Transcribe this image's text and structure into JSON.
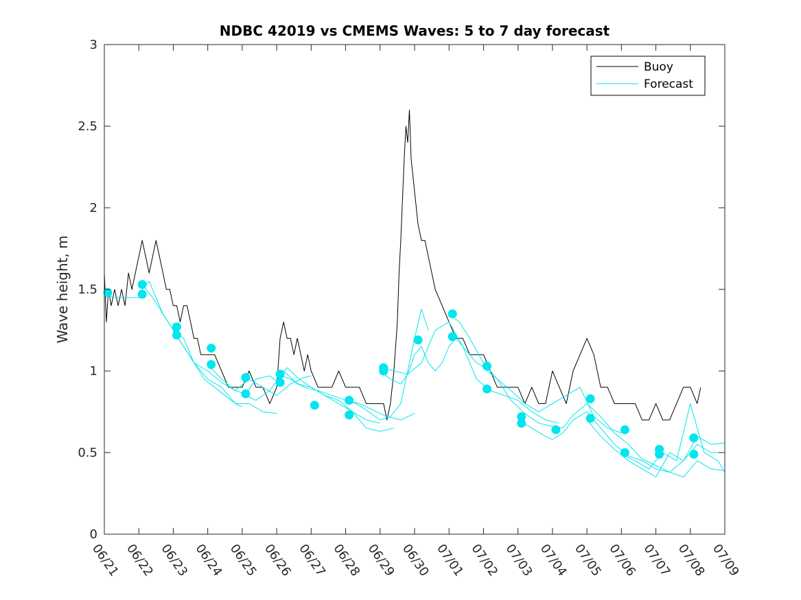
{
  "chart_data": {
    "type": "line",
    "title": "NDBC 42019 vs CMEMS Waves: 5 to 7 day forecast",
    "ylabel": "Wave height, m",
    "xlabel": "",
    "ylim": [
      0,
      3
    ],
    "xlim": [
      "06/21",
      "07/09"
    ],
    "x_ticks": [
      "06/21",
      "06/22",
      "06/23",
      "06/24",
      "06/25",
      "06/26",
      "06/27",
      "06/28",
      "06/29",
      "06/30",
      "07/01",
      "07/02",
      "07/03",
      "07/04",
      "07/05",
      "07/06",
      "07/07",
      "07/08",
      "07/09"
    ],
    "y_ticks": [
      "0",
      "0.5",
      "1",
      "1.5",
      "2",
      "2.5",
      "3"
    ],
    "legend_position": "top-right",
    "colors": {
      "buoy": "#000000",
      "forecast": "#00e5ee",
      "markers": "#00e5ee"
    },
    "series": [
      {
        "name": "Buoy",
        "color": "#000000",
        "x": [
          0.0,
          0.06,
          0.12,
          0.2,
          0.3,
          0.4,
          0.5,
          0.6,
          0.7,
          0.8,
          0.9,
          1.0,
          1.1,
          1.2,
          1.3,
          1.4,
          1.5,
          1.6,
          1.7,
          1.8,
          1.9,
          2.0,
          2.1,
          2.2,
          2.3,
          2.4,
          2.5,
          2.6,
          2.7,
          2.8,
          2.9,
          3.0,
          3.2,
          3.4,
          3.6,
          3.8,
          4.0,
          4.2,
          4.4,
          4.6,
          4.8,
          4.9,
          5.0,
          5.1,
          5.2,
          5.3,
          5.4,
          5.5,
          5.6,
          5.7,
          5.8,
          5.9,
          6.0,
          6.2,
          6.4,
          6.6,
          6.8,
          7.0,
          7.2,
          7.4,
          7.6,
          7.8,
          7.9,
          8.0,
          8.1,
          8.2,
          8.3,
          8.4,
          8.5,
          8.55,
          8.6,
          8.7,
          8.75,
          8.8,
          8.85,
          8.9,
          9.0,
          9.1,
          9.2,
          9.3,
          9.4,
          9.5,
          9.6,
          9.8,
          10.0,
          10.2,
          10.4,
          10.6,
          10.8,
          11.0,
          11.2,
          11.4,
          11.6,
          11.8,
          12.0,
          12.2,
          12.4,
          12.6,
          12.8,
          13.0,
          13.2,
          13.4,
          13.6,
          13.8,
          14.0,
          14.2,
          14.4,
          14.6,
          14.8,
          15.0,
          15.2,
          15.4,
          15.6,
          15.8,
          16.0,
          16.2,
          16.4,
          16.6,
          16.8,
          17.0,
          17.2,
          17.3
        ],
        "values": [
          1.6,
          1.3,
          1.5,
          1.4,
          1.5,
          1.4,
          1.5,
          1.4,
          1.6,
          1.5,
          1.6,
          1.7,
          1.8,
          1.7,
          1.6,
          1.7,
          1.8,
          1.7,
          1.6,
          1.5,
          1.5,
          1.4,
          1.4,
          1.3,
          1.4,
          1.4,
          1.3,
          1.2,
          1.2,
          1.1,
          1.1,
          1.1,
          1.1,
          1.0,
          0.9,
          0.9,
          0.9,
          1.0,
          0.9,
          0.9,
          0.8,
          0.85,
          0.9,
          1.2,
          1.3,
          1.2,
          1.2,
          1.1,
          1.2,
          1.1,
          1.0,
          1.1,
          1.0,
          0.9,
          0.9,
          0.9,
          1.0,
          0.9,
          0.9,
          0.9,
          0.8,
          0.8,
          0.8,
          0.8,
          0.8,
          0.7,
          0.8,
          1.0,
          1.3,
          1.6,
          1.8,
          2.3,
          2.5,
          2.4,
          2.6,
          2.3,
          2.1,
          1.9,
          1.8,
          1.8,
          1.7,
          1.6,
          1.5,
          1.4,
          1.3,
          1.2,
          1.2,
          1.1,
          1.1,
          1.1,
          1.0,
          0.9,
          0.9,
          0.9,
          0.9,
          0.8,
          0.9,
          0.8,
          0.8,
          1.0,
          0.9,
          0.8,
          1.0,
          1.1,
          1.2,
          1.1,
          0.9,
          0.9,
          0.8,
          0.8,
          0.8,
          0.8,
          0.7,
          0.7,
          0.8,
          0.7,
          0.7,
          0.8,
          0.9,
          0.9,
          0.8,
          0.9
        ]
      },
      {
        "name": "Forecast",
        "color": "#00e5ee",
        "x": [
          0.0,
          0.3,
          0.6,
          1.0,
          1.1,
          1.3,
          1.5,
          1.7,
          2.0,
          2.3,
          2.6,
          2.9,
          3.2,
          3.5,
          3.8,
          4.0
        ],
        "values": [
          1.47,
          1.45,
          1.45,
          1.45,
          1.5,
          1.55,
          1.45,
          1.35,
          1.25,
          1.15,
          1.05,
          0.95,
          0.9,
          0.85,
          0.8,
          0.78
        ]
      },
      {
        "name": "",
        "color": "#00e5ee",
        "x": [
          1.1,
          1.4,
          1.7,
          2.0,
          2.3,
          2.6,
          3.0,
          3.4,
          3.8,
          4.2,
          4.6,
          5.0
        ],
        "values": [
          1.53,
          1.45,
          1.35,
          1.25,
          1.2,
          1.05,
          0.95,
          0.9,
          0.8,
          0.8,
          0.75,
          0.74
        ]
      },
      {
        "name": "",
        "color": "#00e5ee",
        "x": [
          2.0,
          2.3,
          2.6,
          3.0,
          3.4,
          3.8,
          4.2,
          4.6,
          5.0,
          5.4,
          5.8,
          6.0
        ],
        "values": [
          1.25,
          1.15,
          1.05,
          1.0,
          0.93,
          0.88,
          0.95,
          0.9,
          0.85,
          0.92,
          0.96,
          0.97
        ]
      },
      {
        "name": "",
        "color": "#00e5ee",
        "x": [
          3.0,
          3.4,
          3.8,
          4.1,
          4.4,
          4.8,
          5.0,
          5.3,
          5.6,
          6.0,
          6.4,
          6.8,
          7.2,
          7.6,
          8.0
        ],
        "values": [
          1.04,
          0.95,
          0.88,
          0.86,
          0.95,
          0.97,
          0.94,
          1.02,
          0.96,
          0.9,
          0.85,
          0.8,
          0.75,
          0.7,
          0.68
        ]
      },
      {
        "name": "",
        "color": "#00e5ee",
        "x": [
          4.0,
          4.4,
          4.8,
          5.2,
          5.6,
          6.0,
          6.4,
          6.8,
          7.2,
          7.6,
          8.0,
          8.4
        ],
        "values": [
          0.86,
          0.82,
          0.88,
          1.0,
          0.92,
          0.9,
          0.85,
          0.82,
          0.75,
          0.65,
          0.63,
          0.65
        ]
      },
      {
        "name": "",
        "color": "#00e5ee",
        "x": [
          5.0,
          5.4,
          5.8,
          6.2,
          6.6,
          7.0,
          7.4,
          7.8,
          8.2,
          8.6,
          9.0
        ],
        "values": [
          0.98,
          0.95,
          0.9,
          0.88,
          0.85,
          0.82,
          0.8,
          0.76,
          0.72,
          0.7,
          0.74
        ]
      },
      {
        "name": "",
        "color": "#00e5ee",
        "x": [
          7.0,
          7.3,
          7.6,
          8.0,
          8.3,
          8.6,
          8.8,
          9.0,
          9.2,
          9.4
        ],
        "values": [
          0.82,
          0.8,
          0.76,
          0.7,
          0.72,
          0.8,
          1.0,
          1.2,
          1.38,
          1.25
        ]
      },
      {
        "name": "",
        "color": "#00e5ee",
        "x": [
          8.0,
          8.3,
          8.6,
          8.8,
          9.0,
          9.2,
          9.4,
          9.6,
          9.8,
          10.0,
          10.2,
          10.4,
          10.8,
          11.2
        ],
        "values": [
          1.0,
          0.95,
          0.92,
          0.98,
          1.1,
          1.15,
          1.05,
          1.0,
          1.05,
          1.15,
          1.2,
          1.15,
          1.05,
          1.0
        ]
      },
      {
        "name": "",
        "color": "#00e5ee",
        "x": [
          8.0,
          8.4,
          8.8,
          9.2,
          9.6,
          10.0,
          10.4,
          10.8,
          11.2,
          11.6,
          12.0,
          12.4,
          12.8,
          13.2
        ],
        "values": [
          1.02,
          1.0,
          0.98,
          1.05,
          1.25,
          1.3,
          1.15,
          0.95,
          0.88,
          0.85,
          0.82,
          0.75,
          0.7,
          0.68
        ]
      },
      {
        "name": "",
        "color": "#00e5ee",
        "x": [
          10.0,
          10.3,
          10.6,
          11.0,
          11.4,
          11.8,
          12.2,
          12.6,
          13.0,
          13.4,
          13.8,
          14.2,
          14.6,
          15.0
        ],
        "values": [
          1.35,
          1.3,
          1.2,
          1.05,
          0.95,
          0.88,
          0.8,
          0.75,
          0.8,
          0.85,
          0.9,
          0.72,
          0.65,
          0.62
        ]
      },
      {
        "name": "",
        "color": "#00e5ee",
        "x": [
          11.0,
          11.4,
          11.8,
          12.2,
          12.6,
          13.0,
          13.3,
          13.6,
          14.0,
          14.4,
          14.8,
          15.2,
          15.6,
          16.0,
          16.4,
          16.8,
          17.2,
          17.6,
          18.0
        ],
        "values": [
          1.02,
          0.95,
          0.82,
          0.74,
          0.68,
          0.66,
          0.65,
          0.73,
          0.8,
          0.72,
          0.62,
          0.55,
          0.46,
          0.42,
          0.38,
          0.35,
          0.45,
          0.4,
          0.39
        ]
      },
      {
        "name": "",
        "color": "#00e5ee",
        "x": [
          12.0,
          12.4,
          12.8,
          13.0,
          13.3,
          13.6,
          14.0,
          14.4,
          14.8,
          15.2,
          15.6,
          16.0,
          16.4,
          16.8,
          17.2,
          17.6,
          18.0
        ],
        "values": [
          0.7,
          0.65,
          0.6,
          0.58,
          0.62,
          0.7,
          0.75,
          0.65,
          0.55,
          0.48,
          0.45,
          0.4,
          0.38,
          0.45,
          0.55,
          0.5,
          0.5
        ]
      },
      {
        "name": "",
        "color": "#00e5ee",
        "x": [
          14.0,
          14.4,
          14.8,
          15.2,
          15.6,
          16.0,
          16.4,
          16.8,
          17.2,
          17.6,
          18.0
        ],
        "values": [
          0.7,
          0.6,
          0.52,
          0.45,
          0.4,
          0.35,
          0.5,
          0.45,
          0.6,
          0.55,
          0.56
        ]
      },
      {
        "name": "",
        "color": "#00e5ee",
        "x": [
          15.0,
          15.4,
          15.8,
          16.2,
          16.6,
          17.0,
          17.4,
          17.8,
          18.0
        ],
        "values": [
          0.49,
          0.45,
          0.4,
          0.5,
          0.45,
          0.8,
          0.5,
          0.45,
          0.38
        ]
      }
    ],
    "markers": {
      "color": "#00e5ee",
      "x": [
        0.1,
        1.1,
        1.1,
        2.1,
        2.1,
        3.1,
        3.1,
        4.1,
        4.1,
        5.1,
        5.1,
        6.1,
        7.1,
        7.1,
        8.1,
        8.1,
        9.1,
        10.1,
        10.1,
        11.1,
        11.1,
        12.1,
        12.1,
        13.1,
        14.1,
        14.1,
        15.1,
        15.1,
        16.1,
        16.1,
        17.1,
        17.1
      ],
      "values": [
        1.48,
        1.53,
        1.47,
        1.27,
        1.22,
        1.14,
        1.04,
        0.96,
        0.86,
        0.98,
        0.93,
        0.79,
        0.82,
        0.73,
        1.02,
        1.0,
        1.19,
        1.35,
        1.21,
        1.03,
        0.89,
        0.72,
        0.68,
        0.64,
        0.83,
        0.71,
        0.64,
        0.5,
        0.49,
        0.52,
        0.49,
        0.59
      ]
    }
  }
}
